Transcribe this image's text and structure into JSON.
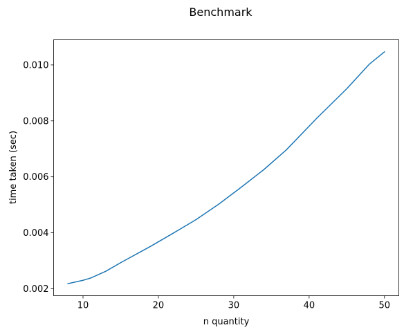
{
  "chart_data": {
    "type": "line",
    "title": "Benchmark",
    "xlabel": "n quantity",
    "ylabel": "time taken (sec)",
    "xlim": [
      6.1,
      51.9
    ],
    "ylim": [
      0.00175,
      0.0109
    ],
    "xticks": [
      10,
      20,
      30,
      40,
      50
    ],
    "xtick_labels": [
      "10",
      "20",
      "30",
      "40",
      "50"
    ],
    "yticks": [
      0.002,
      0.004,
      0.006,
      0.008,
      0.01
    ],
    "ytick_labels": [
      "0.002",
      "0.004",
      "0.006",
      "0.008",
      "0.010"
    ],
    "grid": false,
    "line_color": "#1f77b4",
    "series": [
      {
        "x": [
          8,
          10,
          11,
          13,
          15,
          19,
          22,
          25,
          28,
          31,
          34,
          37,
          41,
          45,
          48,
          50
        ],
        "y": [
          0.00218,
          0.0023,
          0.00238,
          0.00262,
          0.00293,
          0.00352,
          0.00399,
          0.00447,
          0.00502,
          0.00563,
          0.00626,
          0.00697,
          0.00809,
          0.00915,
          0.01003,
          0.01047
        ]
      }
    ]
  }
}
